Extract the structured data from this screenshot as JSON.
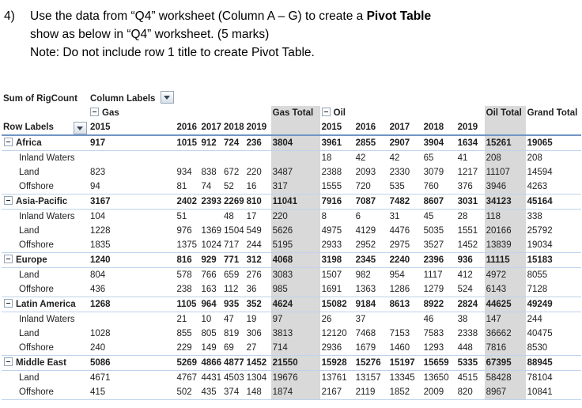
{
  "question": {
    "number": "4)",
    "line1_pre": "Use the data from “Q4” worksheet (Column A – G) to create a ",
    "line1_bold": "Pivot Table",
    "line2": "show as below in “Q4” worksheet. (5 marks)",
    "line3": "Note: Do not include row 1 title to create Pivot Table."
  },
  "pivot": {
    "corner_label": "Sum of RigCount",
    "column_labels": "Column Labels",
    "row_labels": "Row Labels",
    "gas_label": "Gas",
    "oil_label": "Oil",
    "gas_total_label": "Gas Total",
    "oil_total_label": "Oil Total",
    "grand_total_label": "Grand Total",
    "gas_years": [
      "2015",
      "2016",
      "2017",
      "2018",
      "2019"
    ],
    "oil_years": [
      "2015",
      "2016",
      "2017",
      "2018",
      "2019"
    ],
    "colors": {
      "total_column_bg": "#d9d9d9",
      "header_rule": "#7296c4",
      "group_rule": "#bed3eb"
    },
    "rows": [
      {
        "label": "Africa",
        "level": 0,
        "gas": [
          "917",
          "1015",
          "912",
          "724",
          "236"
        ],
        "gasTotal": "3804",
        "oil": [
          "3961",
          "2855",
          "2907",
          "3904",
          "1634"
        ],
        "oilTotal": "15261",
        "grand": "19065"
      },
      {
        "label": "Inland Waters",
        "level": 1,
        "gas": [
          "",
          "",
          "",
          "",
          ""
        ],
        "gasTotal": "",
        "oil": [
          "18",
          "42",
          "42",
          "65",
          "41"
        ],
        "oilTotal": "208",
        "grand": "208"
      },
      {
        "label": "Land",
        "level": 1,
        "gas": [
          "823",
          "934",
          "838",
          "672",
          "220"
        ],
        "gasTotal": "3487",
        "oil": [
          "2388",
          "2093",
          "2330",
          "3079",
          "1217"
        ],
        "oilTotal": "11107",
        "grand": "14594"
      },
      {
        "label": "Offshore",
        "level": 1,
        "gas": [
          "94",
          "81",
          "74",
          "52",
          "16"
        ],
        "gasTotal": "317",
        "oil": [
          "1555",
          "720",
          "535",
          "760",
          "376"
        ],
        "oilTotal": "3946",
        "grand": "4263"
      },
      {
        "label": "Asia-Pacific",
        "level": 0,
        "gas": [
          "3167",
          "2402",
          "2393",
          "2269",
          "810"
        ],
        "gasTotal": "11041",
        "oil": [
          "7916",
          "7087",
          "7482",
          "8607",
          "3031"
        ],
        "oilTotal": "34123",
        "grand": "45164"
      },
      {
        "label": "Inland Waters",
        "level": 1,
        "gas": [
          "104",
          "51",
          "",
          "48",
          "17"
        ],
        "gasTotal": "220",
        "oil": [
          "8",
          "6",
          "31",
          "45",
          "28"
        ],
        "oilTotal": "118",
        "grand": "338"
      },
      {
        "label": "Land",
        "level": 1,
        "gas": [
          "1228",
          "976",
          "1369",
          "1504",
          "549"
        ],
        "gasTotal": "5626",
        "oil": [
          "4975",
          "4129",
          "4476",
          "5035",
          "1551"
        ],
        "oilTotal": "20166",
        "grand": "25792"
      },
      {
        "label": "Offshore",
        "level": 1,
        "gas": [
          "1835",
          "1375",
          "1024",
          "717",
          "244"
        ],
        "gasTotal": "5195",
        "oil": [
          "2933",
          "2952",
          "2975",
          "3527",
          "1452"
        ],
        "oilTotal": "13839",
        "grand": "19034"
      },
      {
        "label": "Europe",
        "level": 0,
        "gas": [
          "1240",
          "816",
          "929",
          "771",
          "312"
        ],
        "gasTotal": "4068",
        "oil": [
          "3198",
          "2345",
          "2240",
          "2396",
          "936"
        ],
        "oilTotal": "11115",
        "grand": "15183"
      },
      {
        "label": "Land",
        "level": 1,
        "gas": [
          "804",
          "578",
          "766",
          "659",
          "276"
        ],
        "gasTotal": "3083",
        "oil": [
          "1507",
          "982",
          "954",
          "1117",
          "412"
        ],
        "oilTotal": "4972",
        "grand": "8055"
      },
      {
        "label": "Offshore",
        "level": 1,
        "gas": [
          "436",
          "238",
          "163",
          "112",
          "36"
        ],
        "gasTotal": "985",
        "oil": [
          "1691",
          "1363",
          "1286",
          "1279",
          "524"
        ],
        "oilTotal": "6143",
        "grand": "7128"
      },
      {
        "label": "Latin America",
        "level": 0,
        "gas": [
          "1268",
          "1105",
          "964",
          "935",
          "352"
        ],
        "gasTotal": "4624",
        "oil": [
          "15082",
          "9184",
          "8613",
          "8922",
          "2824"
        ],
        "oilTotal": "44625",
        "grand": "49249"
      },
      {
        "label": "Inland Waters",
        "level": 1,
        "gas": [
          "",
          "21",
          "10",
          "47",
          "19"
        ],
        "gasTotal": "97",
        "oil": [
          "26",
          "37",
          "",
          "46",
          "38"
        ],
        "oilTotal": "147",
        "grand": "244"
      },
      {
        "label": "Land",
        "level": 1,
        "gas": [
          "1028",
          "855",
          "805",
          "819",
          "306"
        ],
        "gasTotal": "3813",
        "oil": [
          "12120",
          "7468",
          "7153",
          "7583",
          "2338"
        ],
        "oilTotal": "36662",
        "grand": "40475"
      },
      {
        "label": "Offshore",
        "level": 1,
        "gas": [
          "240",
          "229",
          "149",
          "69",
          "27"
        ],
        "gasTotal": "714",
        "oil": [
          "2936",
          "1679",
          "1460",
          "1293",
          "448"
        ],
        "oilTotal": "7816",
        "grand": "8530"
      },
      {
        "label": "Middle East",
        "level": 0,
        "gas": [
          "5086",
          "5269",
          "4866",
          "4877",
          "1452"
        ],
        "gasTotal": "21550",
        "oil": [
          "15928",
          "15276",
          "15197",
          "15659",
          "5335"
        ],
        "oilTotal": "67395",
        "grand": "88945"
      },
      {
        "label": "Land",
        "level": 1,
        "gas": [
          "4671",
          "4767",
          "4431",
          "4503",
          "1304"
        ],
        "gasTotal": "19676",
        "oil": [
          "13761",
          "13157",
          "13345",
          "13650",
          "4515"
        ],
        "oilTotal": "58428",
        "grand": "78104"
      },
      {
        "label": "Offshore",
        "level": 1,
        "gas": [
          "415",
          "502",
          "435",
          "374",
          "148"
        ],
        "gasTotal": "1874",
        "oil": [
          "2167",
          "2119",
          "1852",
          "2009",
          "820"
        ],
        "oilTotal": "8967",
        "grand": "10841"
      }
    ]
  }
}
